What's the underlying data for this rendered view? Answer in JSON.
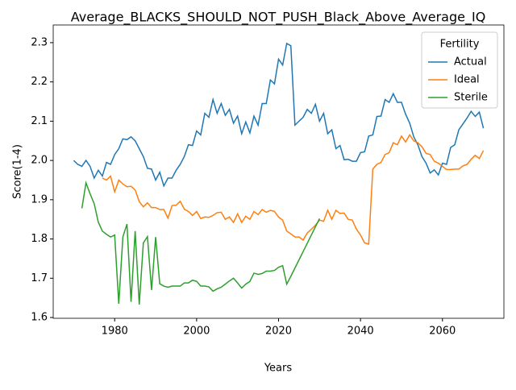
{
  "chart_data": {
    "type": "line",
    "title": "Average_BLACKS_SHOULD_NOT_PUSH_Black_Above_Average_IQ",
    "x_label": "Years",
    "y_label": "Score(1-4)",
    "x": [
      1970,
      1971,
      1972,
      1973,
      1974,
      1975,
      1976,
      1977,
      1978,
      1979,
      1980,
      1981,
      1982,
      1983,
      1984,
      1985,
      1986,
      1987,
      1988,
      1989,
      1990,
      1991,
      1992,
      1993,
      1994,
      1995,
      1996,
      1997,
      1998,
      1999,
      2000,
      2001,
      2002,
      2003,
      2004,
      2005,
      2006,
      2007,
      2008,
      2009,
      2010,
      2011,
      2012,
      2013,
      2014,
      2015,
      2016,
      2017,
      2018,
      2019,
      2020,
      2021,
      2022,
      2023,
      2024,
      2025,
      2026,
      2027,
      2028,
      2029,
      2030,
      2031,
      2032,
      2033,
      2034,
      2035,
      2036,
      2037,
      2038,
      2039,
      2040,
      2041,
      2042,
      2043,
      2044,
      2045,
      2046,
      2047,
      2048,
      2049,
      2050,
      2051,
      2052,
      2053,
      2054,
      2055,
      2056,
      2057,
      2058,
      2059,
      2060,
      2061,
      2062,
      2063,
      2064,
      2065,
      2066,
      2067,
      2068,
      2069,
      2070
    ],
    "series": [
      {
        "name": "Actual",
        "color": "#1f77b4",
        "values": [
          2.0,
          1.99,
          1.985,
          2.0,
          1.985,
          1.955,
          1.975,
          1.96,
          1.995,
          1.99,
          2.015,
          2.03,
          2.055,
          2.053,
          2.06,
          2.05,
          2.03,
          2.01,
          1.98,
          1.978,
          1.95,
          1.97,
          1.935,
          1.955,
          1.955,
          1.975,
          1.99,
          2.01,
          2.04,
          2.038,
          2.075,
          2.065,
          2.12,
          2.11,
          2.155,
          2.12,
          2.145,
          2.115,
          2.13,
          2.095,
          2.113,
          2.068,
          2.098,
          2.07,
          2.113,
          2.09,
          2.145,
          2.145,
          2.205,
          2.195,
          2.258,
          2.243,
          2.298,
          2.292,
          2.09,
          2.1,
          2.11,
          2.13,
          2.12,
          2.143,
          2.1,
          2.12,
          2.068,
          2.078,
          2.03,
          2.038,
          2.002,
          2.003,
          1.998,
          1.998,
          2.02,
          2.022,
          2.062,
          2.065,
          2.112,
          2.113,
          2.155,
          2.148,
          2.17,
          2.148,
          2.148,
          2.118,
          2.095,
          2.06,
          2.04,
          2.01,
          1.993,
          1.968,
          1.976,
          1.963,
          1.993,
          1.99,
          2.033,
          2.04,
          2.078,
          2.093,
          2.108,
          2.125,
          2.112,
          2.123,
          2.082
        ]
      },
      {
        "name": "Ideal",
        "color": "#ff7f0e",
        "values": [
          null,
          null,
          null,
          null,
          null,
          null,
          null,
          1.955,
          1.95,
          1.96,
          1.92,
          1.95,
          1.94,
          1.933,
          1.934,
          1.925,
          1.895,
          1.882,
          1.892,
          1.88,
          1.88,
          1.875,
          1.875,
          1.853,
          1.885,
          1.886,
          1.896,
          1.876,
          1.87,
          1.86,
          1.87,
          1.852,
          1.856,
          1.855,
          1.86,
          1.867,
          1.868,
          1.85,
          1.856,
          1.842,
          1.864,
          1.842,
          1.858,
          1.85,
          1.87,
          1.862,
          1.875,
          1.868,
          1.873,
          1.87,
          1.856,
          1.848,
          1.82,
          1.813,
          1.805,
          1.805,
          1.797,
          1.815,
          1.825,
          1.835,
          1.848,
          1.845,
          1.873,
          1.85,
          1.873,
          1.865,
          1.866,
          1.85,
          1.848,
          1.825,
          1.81,
          1.79,
          1.787,
          1.978,
          1.99,
          1.995,
          2.015,
          2.02,
          2.045,
          2.04,
          2.062,
          2.047,
          2.065,
          2.05,
          2.045,
          2.035,
          2.018,
          2.015,
          1.998,
          1.993,
          1.985,
          1.977,
          1.977,
          1.978,
          1.978,
          1.986,
          1.99,
          2.003,
          2.013,
          2.005,
          2.025
        ]
      },
      {
        "name": "Sterile",
        "color": "#2ca02c",
        "values": [
          null,
          null,
          1.878,
          1.943,
          1.915,
          1.89,
          1.843,
          1.82,
          1.812,
          1.805,
          1.81,
          1.635,
          1.805,
          1.838,
          1.64,
          1.82,
          1.633,
          1.79,
          1.806,
          1.67,
          1.805,
          1.686,
          1.68,
          1.677,
          1.68,
          1.68,
          1.68,
          1.688,
          1.688,
          1.695,
          1.692,
          1.68,
          1.68,
          1.678,
          1.667,
          1.673,
          1.677,
          1.685,
          1.693,
          1.7,
          1.688,
          1.675,
          1.685,
          1.692,
          1.713,
          1.71,
          1.712,
          1.718,
          1.718,
          1.72,
          1.728,
          1.732,
          1.685,
          1.705,
          1.726,
          1.747,
          1.768,
          1.789,
          1.81,
          1.831,
          1.852,
          null,
          null,
          null,
          null,
          null,
          null,
          null,
          null,
          null,
          null,
          null,
          null,
          null,
          null,
          null,
          null,
          null,
          null,
          null,
          null,
          null,
          null,
          null,
          null,
          null,
          null,
          null,
          null,
          null,
          null,
          null,
          null,
          null,
          null,
          null,
          null,
          null,
          null,
          null,
          null
        ]
      }
    ],
    "xlim": [
      1965,
      2075
    ],
    "xticks": [
      1980,
      2000,
      2020,
      2040,
      2060
    ],
    "ylim": [
      1.598,
      2.345
    ],
    "yticks": [
      1.6,
      1.7,
      1.8,
      1.9,
      {
        "value": 2,
        "label": "2.0"
      },
      2.1,
      2.2,
      2.3
    ],
    "legend": {
      "title": "Fertility",
      "position": "upper right"
    },
    "grid": false
  }
}
